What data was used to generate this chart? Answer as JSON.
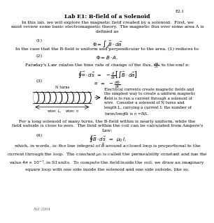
{
  "page_label": "E2.1",
  "title": "Lab E1: B-field of a Solenoid",
  "footer": "Fall 2004",
  "background_color": "#ffffff",
  "text_color": "#000000",
  "gray_color": "#666666",
  "body_fontsize": 4.5,
  "title_fontsize": 5.5,
  "eq_fontsize": 5.0,
  "small_fontsize": 3.8,
  "paragraph1": "In this lab, we will explore the magnetic field created by a solenoid.  First, we\nmust review some basic electromagnetic theory.  The magnetic flux over some area A is\ndefined as",
  "eq1_label": "(1)",
  "eq1": "$\\Phi = \\int_A \\vec{B} \\cdot d\\vec{a}$",
  "paragraph2": "In the case that the B-field is uniform and perpendicular to the area, (1) reduces to",
  "eq2_label": "(2)",
  "eq2": "$\\Phi = B \\cdot A$.",
  "paragraph3": "Faraday's Law relates the time rate of change of the flux, $\\frac{d\\Phi}{dt}$, to the emf $\\mathcal{E}$:",
  "eq3a": "$\\oint \\vec{\\mathcal{E}} \\cdot d\\vec{s} \\;\\; = \\;\\; -\\frac{d}{dt}\\left[\\int \\vec{B} \\cdot d\\vec{a}\\right]$",
  "eq3_label": "(3)",
  "eq3b": "$\\mathcal{E} \\;\\; = \\;\\; -\\frac{d\\Phi}{dt}$",
  "paragraph4_right": "Electrical currents create magnetic fields and\nthe simplest way to create a uniform magnetic\nfield is to run a current through a solenoid of\nwire.  Consider a solenoid of N turns and\nlength L, carrying a current I; the number of\nturns/length is $n = N/L$.",
  "paragraph_ampere": "For a long solenoid of many turns, the B-field within is nearly uniform, while the\nfield outside is close to zero.  The field within the coil can be calculated from Ampere's\nLaw:",
  "eq4_label": "(4)",
  "eq4": "$\\oint \\vec{B} \\cdot d\\vec{s} \\;\\; = \\;\\; \\mu_0 \\, I$,",
  "paragraph5": "which, in words, is: the line integral of $\\vec{B}$ around a closed loop is proportional to the\ncurrent through the loop.  The constant $\\mu_0$ is called the permeability constant and has the\nvalue $4\\pi \\times 10^{-7}$, in SI units.  To compute the field inside the coil, we draw an imaginary\nsquare loop with one side inside the solenoid and one side outside, like so."
}
